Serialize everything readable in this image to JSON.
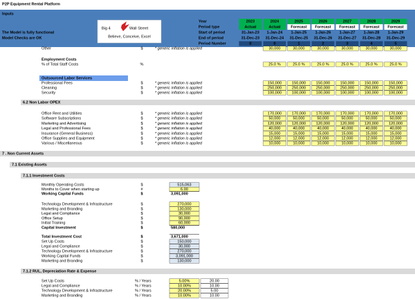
{
  "title": "P2P Equipment Rental Platform",
  "header": {
    "title": "Inputs",
    "status": [
      "The Model is fully functional",
      "Model Checks are OK"
    ],
    "logo": {
      "left": "Big 4",
      "right": "Wall Street",
      "tagline": "Believe, Conceive, Excel"
    }
  },
  "timeline": {
    "labels": [
      "Year",
      "Period type",
      "Start of period",
      "End of period",
      "Period Number"
    ],
    "columns": [
      {
        "year": 2023,
        "type": "Actual",
        "start": "31-Jan-23",
        "end": "31-Dec-23",
        "period": 0
      },
      {
        "year": 2024,
        "type": "Actual",
        "start": "1-Jan-24",
        "end": "31-Dec-24",
        "period": 0
      },
      {
        "year": 2025,
        "type": "Forecast",
        "start": "1-Jan-25",
        "end": "31-Dec-25",
        "period": 1
      },
      {
        "year": 2026,
        "type": "Forecast",
        "start": "1-Jan-26",
        "end": "31-Dec-26",
        "period": 2
      },
      {
        "year": 2027,
        "type": "Forecast",
        "start": "1-Jan-27",
        "end": "31-Dec-27",
        "period": 3
      },
      {
        "year": 2028,
        "type": "Forecast",
        "start": "1-Jan-28",
        "end": "31-Dec-28",
        "period": 4
      },
      {
        "year": 2029,
        "type": "Forecast",
        "start": "1-Jan-29",
        "end": "31-Dec-29",
        "period": 5
      }
    ]
  },
  "staff": {
    "other": {
      "label": "Other",
      "unit": "$",
      "note": "* generic inflation is applied",
      "values": [
        "30,000",
        "30,000",
        "30,000",
        "30,000",
        "30,000",
        "30,000"
      ]
    },
    "employment_heading": "Employment Costs",
    "employment": {
      "label": "% of Total Staff Costs",
      "unit": "%",
      "values": [
        "25.0 %",
        "25.0 %",
        "25.0 %",
        "25.0 %",
        "25.0 %",
        "25.0 %"
      ]
    },
    "outsourced_heading": "Outsourced Labor Services",
    "outsourced": [
      {
        "label": "Professional Fees",
        "unit": "$",
        "note": "* generic inflation is applied",
        "values": [
          "150,000",
          "150,000",
          "150,000",
          "150,000",
          "150,000",
          "150,000"
        ]
      },
      {
        "label": "Cleaning",
        "unit": "$",
        "note": "* generic inflation is applied",
        "values": [
          "250,000",
          "250,000",
          "250,000",
          "250,000",
          "250,000",
          "250,000"
        ]
      },
      {
        "label": "Security",
        "unit": "$",
        "note": "* generic inflation is applied",
        "values": [
          "100,000",
          "100,000",
          "100,000",
          "100,000",
          "100,000",
          "100,000"
        ]
      }
    ]
  },
  "non_labor": {
    "title": "6.2  Non Labor OPEX",
    "rows": [
      {
        "label": "Office Rent and Utilities",
        "unit": "$",
        "note": "* generic inflation is applied",
        "values": [
          "170,000",
          "170,000",
          "170,000",
          "170,000",
          "170,000",
          "170,000"
        ]
      },
      {
        "label": "Software Subscriptions",
        "unit": "$",
        "note": "* generic inflation is applied",
        "values": [
          "50,000",
          "50,000",
          "50,000",
          "50,000",
          "50,000",
          "50,000"
        ]
      },
      {
        "label": "Marketing and Advertising",
        "unit": "$",
        "note": "* generic inflation is applied",
        "values": [
          "120,000",
          "120,000",
          "120,000",
          "120,000",
          "120,000",
          "120,000"
        ]
      },
      {
        "label": "Legal and Professional Fees",
        "unit": "$",
        "note": "* generic inflation is applied",
        "values": [
          "40,000",
          "40,000",
          "40,000",
          "40,000",
          "40,000",
          "40,000"
        ]
      },
      {
        "label": "Insurance (General Business)",
        "unit": "$",
        "note": "* generic inflation is applied",
        "values": [
          "15,000",
          "15,000",
          "15,000",
          "15,000",
          "15,000",
          "15,000"
        ]
      },
      {
        "label": "Office Supplies and Equipment",
        "unit": "$",
        "note": "* generic inflation is applied",
        "values": [
          "12,000",
          "12,000",
          "12,000",
          "12,000",
          "12,000",
          "12,000"
        ]
      },
      {
        "label": "Various / Miscellaneous",
        "unit": "$",
        "note": "* generic inflation is applied",
        "values": [
          "10,000",
          "10,000",
          "10,000",
          "10,000",
          "10,000",
          "10,000"
        ]
      }
    ]
  },
  "non_current": {
    "title": "7 .  Non Current Assets",
    "existing": "7.1  Existing Assets",
    "investment": {
      "title": "7.1.1  Investment Costs",
      "working": [
        {
          "label": "Monthly Operating Costs",
          "unit": "$",
          "value": "515,063"
        },
        {
          "label": "Months to Cover when starting up",
          "unit": "#",
          "value": "6.00"
        },
        {
          "label": "Working Capital Funds",
          "unit": "$",
          "value": "3,091,000"
        }
      ],
      "capital": [
        {
          "label": "Technology Development & Infrastructure",
          "unit": "$",
          "value": "270,000"
        },
        {
          "label": "Marketing and Branding",
          "unit": "$",
          "value": "130,000"
        },
        {
          "label": "Legal and Compliance",
          "unit": "$",
          "value": "30,000"
        },
        {
          "label": "Office Setup",
          "unit": "$",
          "value": "90,000"
        },
        {
          "label": "Initial Training",
          "unit": "$",
          "value": "60,000"
        },
        {
          "label": "Capital Investment",
          "unit": "$",
          "value": "580,000"
        }
      ],
      "total": [
        {
          "label": "Total Investment Cost",
          "unit": "$",
          "value": "3,671,000"
        },
        {
          "label": "Set Up Costs",
          "unit": "$",
          "value": "150,000"
        },
        {
          "label": "Legal and Compliance",
          "unit": "$",
          "value": "30,000"
        },
        {
          "label": "Technology Development & Infrastructure",
          "unit": "$",
          "value": "270,000"
        },
        {
          "label": "Working Capital Funds",
          "unit": "$",
          "value": "3,091,000"
        },
        {
          "label": "Marketing and Branding",
          "unit": "$",
          "value": "130,000"
        }
      ]
    },
    "depreciation": {
      "title": "7.1.2  RUL, Depreciation Rate & Expense",
      "rows": [
        {
          "label": "Set Up Costs",
          "unit": "% / Years",
          "rate": "5.00%",
          "years": "20.00"
        },
        {
          "label": "Legal and Compliance",
          "unit": "% / Years",
          "rate": "10.00%",
          "years": "10.00"
        },
        {
          "label": "Technology Development & Infrastructure",
          "unit": "% / Years",
          "rate": "20.00%",
          "years": "5.00"
        },
        {
          "label": "Marketing and Branding",
          "unit": "% / Years",
          "rate": "10.00%",
          "years": "10.00"
        }
      ]
    }
  }
}
